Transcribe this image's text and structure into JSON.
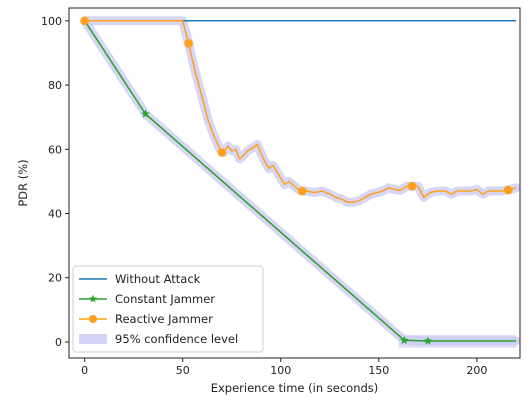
{
  "chart_data": {
    "type": "line",
    "xlabel": "Experience time (in seconds)",
    "ylabel": "PDR (%)",
    "xlim": [
      -8,
      222
    ],
    "ylim": [
      -5,
      104
    ],
    "x_ticks": [
      0,
      50,
      100,
      150,
      200
    ],
    "y_ticks": [
      0,
      20,
      40,
      60,
      80,
      100
    ],
    "grid": false,
    "legend_position": "lower-left",
    "series": [
      {
        "name": "Without Attack",
        "color": "#1f77b4",
        "marker": "none",
        "points": [
          [
            0,
            100
          ],
          [
            220,
            100
          ]
        ]
      },
      {
        "name": "Constant Jammer",
        "color": "#2ca02c",
        "marker": "star",
        "points": [
          [
            0,
            100
          ],
          [
            31,
            71
          ],
          [
            163,
            0.5
          ],
          [
            175,
            0.3
          ],
          [
            220,
            0.3
          ]
        ],
        "marker_points": [
          [
            31,
            71
          ],
          [
            163,
            0.5
          ],
          [
            175,
            0.3
          ]
        ]
      },
      {
        "name": "Reactive Jammer",
        "color": "#ff9f1c",
        "marker": "circle",
        "points": [
          [
            0,
            100
          ],
          [
            50,
            100
          ],
          [
            53,
            93
          ],
          [
            56,
            85
          ],
          [
            60,
            76
          ],
          [
            63,
            69
          ],
          [
            66,
            64
          ],
          [
            69,
            60
          ],
          [
            71,
            59
          ],
          [
            73,
            61
          ],
          [
            75,
            59.5
          ],
          [
            77,
            60
          ],
          [
            79,
            57
          ],
          [
            81,
            58
          ],
          [
            83,
            59.5
          ],
          [
            86,
            60.5
          ],
          [
            88,
            61.5
          ],
          [
            90,
            58.5
          ],
          [
            92,
            56
          ],
          [
            94,
            54
          ],
          [
            96,
            55
          ],
          [
            98,
            53
          ],
          [
            100,
            51
          ],
          [
            102,
            49
          ],
          [
            104,
            50
          ],
          [
            107,
            48.5
          ],
          [
            110,
            47
          ],
          [
            113,
            47
          ],
          [
            117,
            46.5
          ],
          [
            121,
            47
          ],
          [
            125,
            46
          ],
          [
            128,
            45
          ],
          [
            131,
            44.5
          ],
          [
            134,
            43.5
          ],
          [
            137,
            43.5
          ],
          [
            140,
            44
          ],
          [
            143,
            45
          ],
          [
            146,
            46
          ],
          [
            149,
            46.5
          ],
          [
            152,
            47
          ],
          [
            155,
            48
          ],
          [
            158,
            47.5
          ],
          [
            161,
            47.2
          ],
          [
            164,
            48.4
          ],
          [
            167,
            48.5
          ],
          [
            170,
            48.4
          ],
          [
            173,
            45
          ],
          [
            176,
            46.5
          ],
          [
            180,
            47
          ],
          [
            184,
            47
          ],
          [
            187,
            46
          ],
          [
            190,
            47
          ],
          [
            194,
            47
          ],
          [
            197,
            47
          ],
          [
            200,
            47.5
          ],
          [
            203,
            46
          ],
          [
            206,
            47
          ],
          [
            210,
            47
          ],
          [
            213,
            47
          ],
          [
            217,
            47.5
          ],
          [
            220,
            48
          ]
        ],
        "marker_points": [
          [
            0,
            100
          ],
          [
            53,
            93
          ],
          [
            70,
            59
          ],
          [
            111,
            47
          ],
          [
            167,
            48.5
          ],
          [
            216,
            47.3
          ]
        ]
      }
    ],
    "confidence_band": {
      "name": "95% confidence level",
      "color": "#c9c9f2"
    }
  }
}
